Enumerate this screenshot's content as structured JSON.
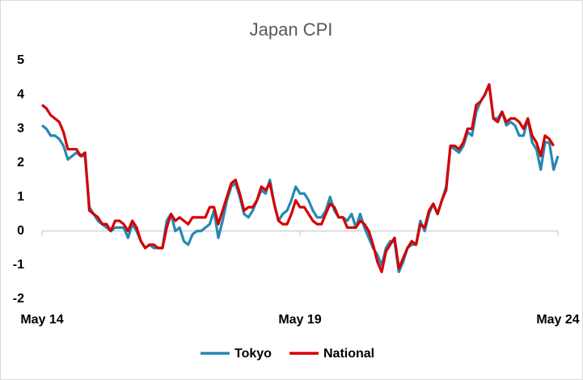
{
  "chart_data": {
    "type": "line",
    "title": "Japan CPI",
    "categories": [
      "May 14",
      null,
      null,
      null,
      null,
      null,
      null,
      null,
      null,
      null,
      null,
      null,
      null,
      null,
      null,
      null,
      null,
      null,
      null,
      null,
      null,
      null,
      null,
      null,
      null,
      null,
      null,
      null,
      null,
      null,
      null,
      null,
      null,
      null,
      null,
      null,
      null,
      null,
      null,
      null,
      null,
      null,
      null,
      null,
      null,
      null,
      null,
      null,
      null,
      null,
      null,
      null,
      null,
      null,
      null,
      null,
      null,
      null,
      null,
      null,
      "May 19",
      null,
      null,
      null,
      null,
      null,
      null,
      null,
      null,
      null,
      null,
      null,
      null,
      null,
      null,
      null,
      null,
      null,
      null,
      null,
      null,
      null,
      null,
      null,
      null,
      null,
      null,
      null,
      null,
      null,
      null,
      null,
      null,
      null,
      null,
      null,
      null,
      null,
      null,
      null,
      null,
      null,
      null,
      null,
      null,
      null,
      null,
      null,
      null,
      null,
      null,
      null,
      null,
      null,
      null,
      null,
      null,
      null,
      null,
      null,
      "May 24"
    ],
    "series": [
      {
        "name": "Tokyo",
        "color": "#2589b3",
        "values": [
          3.1,
          3.0,
          2.8,
          2.8,
          2.7,
          2.5,
          2.1,
          2.2,
          2.3,
          2.2,
          2.2,
          0.7,
          0.5,
          0.3,
          0.2,
          0.1,
          0.0,
          0.1,
          0.1,
          0.1,
          -0.2,
          0.2,
          0.0,
          -0.3,
          -0.5,
          -0.4,
          -0.5,
          -0.5,
          -0.5,
          0.3,
          0.5,
          0.0,
          0.1,
          -0.3,
          -0.4,
          -0.1,
          0.0,
          0.0,
          0.1,
          0.2,
          0.6,
          -0.2,
          0.3,
          0.9,
          1.3,
          1.4,
          1.0,
          0.5,
          0.4,
          0.6,
          0.9,
          1.2,
          1.1,
          1.5,
          0.8,
          0.3,
          0.5,
          0.6,
          0.9,
          1.3,
          1.1,
          1.1,
          0.9,
          0.6,
          0.4,
          0.4,
          0.6,
          1.0,
          0.6,
          0.4,
          0.4,
          0.3,
          0.5,
          0.1,
          0.5,
          0.1,
          -0.2,
          -0.5,
          -0.7,
          -1.0,
          -0.5,
          -0.3,
          -0.3,
          -1.2,
          -0.9,
          -0.5,
          -0.4,
          -0.4,
          0.3,
          0.0,
          0.5,
          0.8,
          0.5,
          0.9,
          1.3,
          2.5,
          2.4,
          2.3,
          2.5,
          2.9,
          2.8,
          3.5,
          3.8,
          4.0,
          4.3,
          3.3,
          3.3,
          3.5,
          3.1,
          3.2,
          3.1,
          2.8,
          2.8,
          3.3,
          2.6,
          2.4,
          1.8,
          2.6,
          2.6,
          1.8,
          2.2
        ]
      },
      {
        "name": "National",
        "color": "#d60000",
        "values": [
          3.7,
          3.6,
          3.4,
          3.3,
          3.2,
          2.9,
          2.4,
          2.4,
          2.4,
          2.2,
          2.3,
          0.6,
          0.5,
          0.4,
          0.2,
          0.2,
          0.0,
          0.3,
          0.3,
          0.2,
          0.0,
          0.3,
          0.1,
          -0.3,
          -0.5,
          -0.4,
          -0.4,
          -0.5,
          -0.5,
          0.1,
          0.5,
          0.3,
          0.4,
          0.3,
          0.2,
          0.4,
          0.4,
          0.4,
          0.4,
          0.7,
          0.7,
          0.2,
          0.6,
          1.0,
          1.4,
          1.5,
          1.1,
          0.6,
          0.7,
          0.7,
          0.9,
          1.3,
          1.2,
          1.4,
          0.8,
          0.3,
          0.2,
          0.2,
          0.5,
          0.9,
          0.7,
          0.7,
          0.5,
          0.3,
          0.2,
          0.2,
          0.5,
          0.8,
          0.7,
          0.4,
          0.4,
          0.1,
          0.1,
          0.1,
          0.3,
          0.2,
          0.0,
          -0.4,
          -0.9,
          -1.2,
          -0.6,
          -0.4,
          -0.2,
          -1.1,
          -0.8,
          -0.5,
          -0.3,
          -0.4,
          0.2,
          0.1,
          0.6,
          0.8,
          0.5,
          0.9,
          1.2,
          2.5,
          2.5,
          2.4,
          2.6,
          3.0,
          3.0,
          3.7,
          3.8,
          4.0,
          4.3,
          3.3,
          3.2,
          3.5,
          3.2,
          3.3,
          3.3,
          3.2,
          3.0,
          3.3,
          2.8,
          2.6,
          2.2,
          2.8,
          2.7,
          2.5,
          null
        ]
      }
    ],
    "ylim": [
      -2,
      5
    ],
    "yticks": [
      -2,
      -1,
      0,
      1,
      2,
      3,
      4,
      5
    ],
    "grid": false
  }
}
